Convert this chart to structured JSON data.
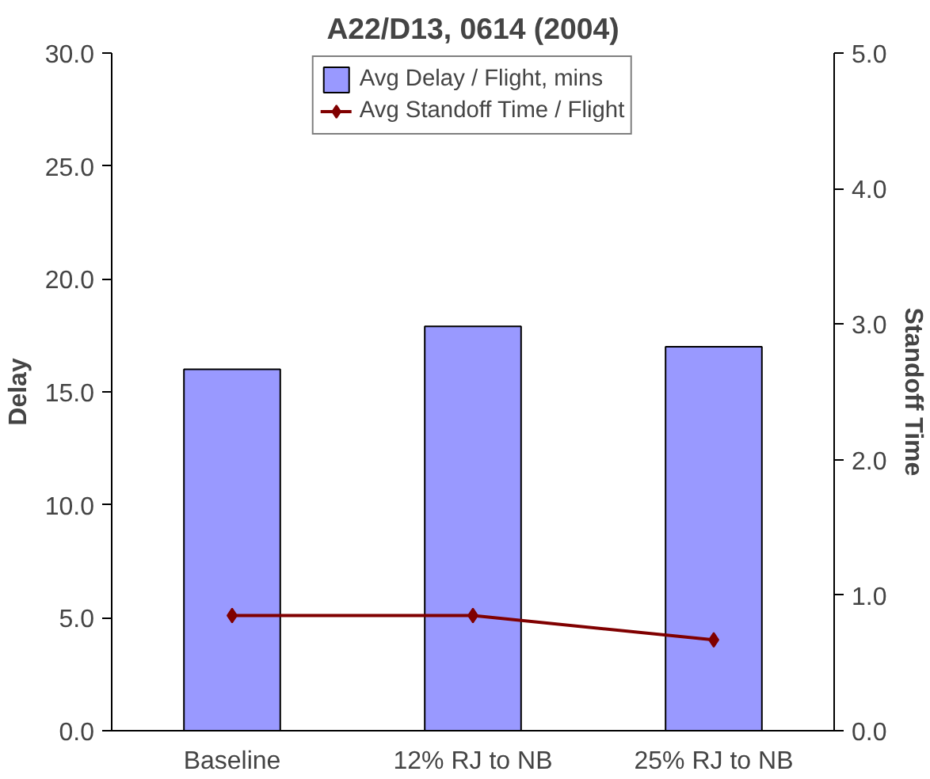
{
  "chart_data": {
    "type": "bar",
    "title": "A22/D13, 0614 (2004)",
    "ylabel": "Delay",
    "y2label": "Standoff Time",
    "categories": [
      "Baseline",
      "12% RJ to NB",
      "25% RJ to NB"
    ],
    "series": [
      {
        "name": "Avg Delay / Flight, mins",
        "color": "#9999ff",
        "values": [
          16.0,
          17.9,
          17.0
        ]
      },
      {
        "name": "Avg Standoff Time / Flight",
        "color": "#800000",
        "type": "line",
        "axis": "y2",
        "marker": "diamond",
        "values": [
          0.85,
          0.85,
          0.67
        ]
      }
    ],
    "ylim": [
      0,
      30
    ],
    "yticks": [
      {
        "value": 0,
        "label": "0.0"
      },
      {
        "value": 5,
        "label": "5.0"
      },
      {
        "value": 10,
        "label": "10.0"
      },
      {
        "value": 15,
        "label": "15.0"
      },
      {
        "value": 20,
        "label": "20.0"
      },
      {
        "value": 25,
        "label": "25.0"
      },
      {
        "value": 30,
        "label": "30.0"
      }
    ],
    "y2lim": [
      0,
      5
    ],
    "y2ticks": [
      {
        "value": 0,
        "label": "0.0"
      },
      {
        "value": 1,
        "label": "1.0"
      },
      {
        "value": 2,
        "label": "2.0"
      },
      {
        "value": 3,
        "label": "3.0"
      },
      {
        "value": 4,
        "label": "4.0"
      },
      {
        "value": 5,
        "label": "5.0"
      }
    ],
    "legend": "top",
    "grid": false
  }
}
